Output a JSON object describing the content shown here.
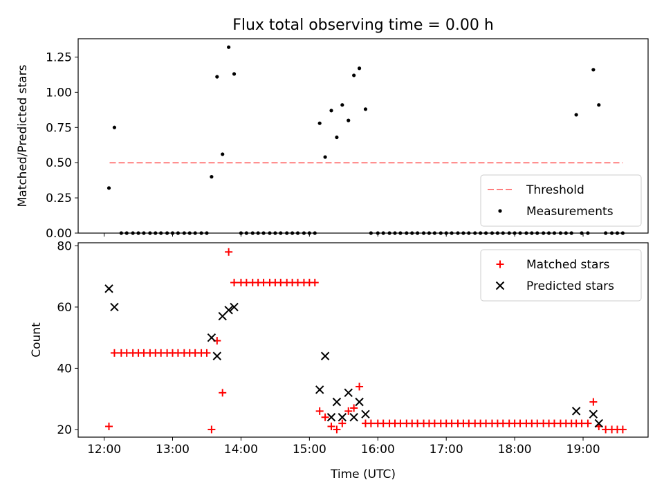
{
  "figure": {
    "title": "Flux total observing time = 0.00 h"
  },
  "chart_data": [
    {
      "type": "scatter",
      "panel": "top",
      "title": "Flux total observing time = 0.00 h",
      "xlabel": "",
      "ylabel": "Matched/Predicted stars",
      "xlim": [
        11.62,
        19.95
      ],
      "ylim": [
        0,
        1.38
      ],
      "yticks": [
        0.0,
        0.25,
        0.5,
        0.75,
        1.0,
        1.25
      ],
      "ytick_labels": [
        "0.00",
        "0.25",
        "0.50",
        "0.75",
        "1.00",
        "1.25"
      ],
      "xticks": [
        12,
        13,
        14,
        15,
        16,
        17,
        18,
        19
      ],
      "grid": false,
      "legend_position": "lower right",
      "threshold": {
        "name": "Threshold",
        "style": "dashed",
        "color": "#ff7f7f",
        "y": 0.5,
        "x": [
          12.08,
          19.58
        ]
      },
      "series": [
        {
          "name": "Measurements",
          "marker": "dot",
          "color": "#000000",
          "x": [
            12.07,
            12.15,
            12.25,
            12.33,
            12.42,
            12.5,
            12.58,
            12.67,
            12.75,
            12.83,
            12.92,
            13.0,
            13.08,
            13.17,
            13.25,
            13.33,
            13.42,
            13.5,
            13.57,
            13.65,
            13.73,
            13.82,
            13.9,
            14.0,
            14.08,
            14.17,
            14.25,
            14.33,
            14.42,
            14.5,
            14.58,
            14.67,
            14.75,
            14.83,
            14.92,
            15.0,
            15.08,
            15.15,
            15.23,
            15.32,
            15.4,
            15.48,
            15.57,
            15.65,
            15.73,
            15.82,
            15.9,
            16.0,
            16.08,
            16.17,
            16.25,
            16.33,
            16.42,
            16.5,
            16.58,
            16.67,
            16.75,
            16.83,
            16.92,
            17.0,
            17.08,
            17.17,
            17.25,
            17.33,
            17.42,
            17.5,
            17.58,
            17.67,
            17.75,
            17.83,
            17.92,
            18.0,
            18.08,
            18.17,
            18.25,
            18.33,
            18.42,
            18.5,
            18.58,
            18.67,
            18.75,
            18.83,
            18.9,
            18.98,
            19.07,
            19.15,
            19.23,
            19.33,
            19.42,
            19.5,
            19.58
          ],
          "y": [
            0.32,
            0.75,
            0.0,
            0.0,
            0.0,
            0.0,
            0.0,
            0.0,
            0.0,
            0.0,
            0.0,
            0.0,
            0.0,
            0.0,
            0.0,
            0.0,
            0.0,
            0.0,
            0.4,
            1.11,
            0.56,
            1.32,
            1.13,
            0.0,
            0.0,
            0.0,
            0.0,
            0.0,
            0.0,
            0.0,
            0.0,
            0.0,
            0.0,
            0.0,
            0.0,
            0.0,
            0.0,
            0.78,
            0.54,
            0.87,
            0.68,
            0.91,
            0.8,
            1.12,
            1.17,
            0.88,
            0.0,
            0.0,
            0.0,
            0.0,
            0.0,
            0.0,
            0.0,
            0.0,
            0.0,
            0.0,
            0.0,
            0.0,
            0.0,
            0.0,
            0.0,
            0.0,
            0.0,
            0.0,
            0.0,
            0.0,
            0.0,
            0.0,
            0.0,
            0.0,
            0.0,
            0.0,
            0.0,
            0.0,
            0.0,
            0.0,
            0.0,
            0.0,
            0.0,
            0.0,
            0.0,
            0.0,
            0.84,
            0.0,
            0.0,
            1.16,
            0.91,
            0.0,
            0.0,
            0.0,
            0.0
          ]
        }
      ]
    },
    {
      "type": "scatter",
      "panel": "bottom",
      "title": "",
      "xlabel": "Time (UTC)",
      "ylabel": "Count",
      "xlim": [
        11.62,
        19.95
      ],
      "ylim": [
        17.5,
        81
      ],
      "yticks": [
        20,
        40,
        60,
        80
      ],
      "xticks": [
        12,
        13,
        14,
        15,
        16,
        17,
        18,
        19
      ],
      "xtick_labels": [
        "12:00",
        "13:00",
        "14:00",
        "15:00",
        "16:00",
        "17:00",
        "18:00",
        "19:00"
      ],
      "grid": false,
      "legend_position": "upper right",
      "series": [
        {
          "name": "Matched stars",
          "marker": "plus",
          "color": "#ff0000",
          "x": [
            12.07,
            12.15,
            12.25,
            12.33,
            12.42,
            12.5,
            12.58,
            12.67,
            12.75,
            12.83,
            12.92,
            13.0,
            13.08,
            13.17,
            13.25,
            13.33,
            13.42,
            13.5,
            13.57,
            13.65,
            13.73,
            13.82,
            13.9,
            14.0,
            14.08,
            14.17,
            14.25,
            14.33,
            14.42,
            14.5,
            14.58,
            14.67,
            14.75,
            14.83,
            14.92,
            15.0,
            15.08,
            15.15,
            15.23,
            15.32,
            15.4,
            15.48,
            15.57,
            15.65,
            15.73,
            15.82,
            15.9,
            16.0,
            16.08,
            16.17,
            16.25,
            16.33,
            16.42,
            16.5,
            16.58,
            16.67,
            16.75,
            16.83,
            16.92,
            17.0,
            17.08,
            17.17,
            17.25,
            17.33,
            17.42,
            17.5,
            17.58,
            17.67,
            17.75,
            17.83,
            17.92,
            18.0,
            18.08,
            18.17,
            18.25,
            18.33,
            18.42,
            18.5,
            18.58,
            18.67,
            18.75,
            18.83,
            18.9,
            18.98,
            19.07,
            19.15,
            19.23,
            19.33,
            19.42,
            19.5,
            19.58
          ],
          "y": [
            21,
            45,
            45,
            45,
            45,
            45,
            45,
            45,
            45,
            45,
            45,
            45,
            45,
            45,
            45,
            45,
            45,
            45,
            20,
            49,
            32,
            78,
            68,
            68,
            68,
            68,
            68,
            68,
            68,
            68,
            68,
            68,
            68,
            68,
            68,
            68,
            68,
            26,
            24,
            21,
            20,
            22,
            26,
            27,
            34,
            22,
            22,
            22,
            22,
            22,
            22,
            22,
            22,
            22,
            22,
            22,
            22,
            22,
            22,
            22,
            22,
            22,
            22,
            22,
            22,
            22,
            22,
            22,
            22,
            22,
            22,
            22,
            22,
            22,
            22,
            22,
            22,
            22,
            22,
            22,
            22,
            22,
            22,
            22,
            22,
            29,
            21,
            20,
            20,
            20,
            20
          ]
        },
        {
          "name": "Predicted stars",
          "marker": "x",
          "color": "#000000",
          "x": [
            12.07,
            12.15,
            13.57,
            13.65,
            13.73,
            13.82,
            13.9,
            15.15,
            15.23,
            15.32,
            15.4,
            15.48,
            15.57,
            15.65,
            15.73,
            15.82,
            18.9,
            19.15,
            19.23
          ],
          "y": [
            66,
            60,
            50,
            44,
            57,
            59,
            60,
            33,
            44,
            24,
            29,
            24,
            32,
            24,
            29,
            25,
            26,
            25,
            22
          ]
        }
      ]
    }
  ]
}
